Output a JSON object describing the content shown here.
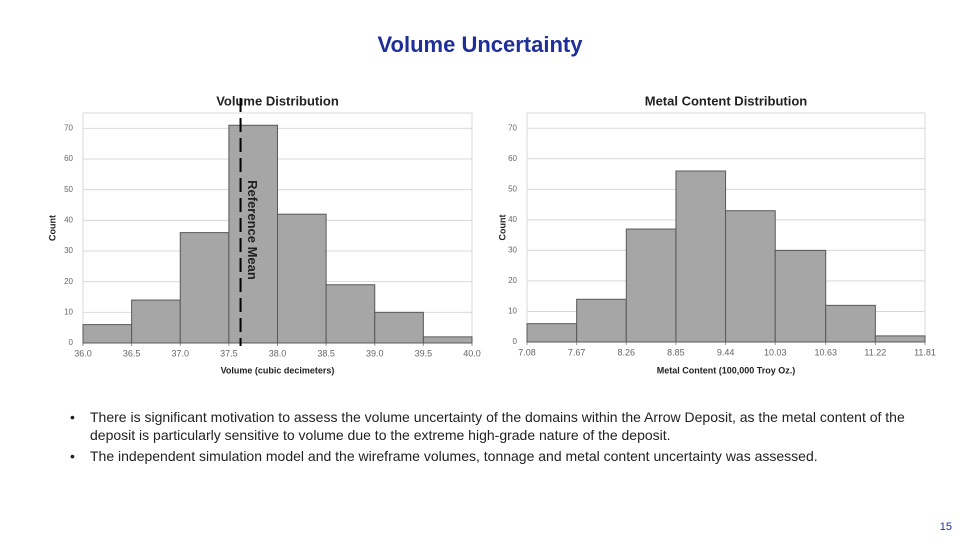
{
  "title": "Volume Uncertainty",
  "bullets": [
    "There is significant motivation to assess the volume uncertainty of the domains within the Arrow Deposit, as the metal content of the deposit is particularly sensitive to volume due to the extreme high-grade nature of the deposit.",
    "The independent simulation model and the wireframe volumes, tonnage and metal content uncertainty was assessed."
  ],
  "page_number": "15",
  "chart_data": [
    {
      "type": "histogram",
      "title": "Volume Distribution",
      "x_label": "Volume (cubic decimeters)",
      "y_label": "Count",
      "bins": [
        36.0,
        36.5,
        37.0,
        37.5,
        38.0,
        38.5,
        39.0,
        39.5,
        40.0
      ],
      "values": [
        6,
        14,
        36,
        71,
        42,
        19,
        10,
        2
      ],
      "color": "#a6a6a6",
      "xlim": [
        36.0,
        40.0
      ],
      "xticks": [
        {
          "value": 36,
          "label": "36.0"
        },
        36.5,
        {
          "value": 37,
          "label": "37.0"
        },
        37.5,
        {
          "value": 38,
          "label": "38.0"
        },
        38.5,
        {
          "value": 39,
          "label": "39.0"
        },
        39.5,
        {
          "value": 40,
          "label": "40.0"
        }
      ],
      "ylim": [
        0,
        75
      ],
      "yticks": [
        0,
        10,
        20,
        30,
        40,
        50,
        60,
        70
      ],
      "grid": true,
      "reference_line": {
        "label": "Reference Mean",
        "value": 37.62
      }
    },
    {
      "type": "histogram",
      "title": "Metal Content Distribution",
      "x_label": "Metal Content (100,000 Troy Oz.)",
      "y_label": "Count",
      "bins": [
        7.08,
        7.67,
        8.26,
        8.85,
        9.44,
        10.03,
        10.63,
        11.22,
        11.81
      ],
      "values": [
        6,
        14,
        37,
        56,
        43,
        30,
        12,
        2
      ],
      "color": "#a6a6a6",
      "xlim": [
        7.08,
        11.81
      ],
      "xticks": [
        7.08,
        7.67,
        8.26,
        8.85,
        9.44,
        10.03,
        10.63,
        11.22,
        11.81
      ],
      "ylim": [
        0,
        75
      ],
      "yticks": [
        0,
        10,
        20,
        30,
        40,
        50,
        60,
        70
      ],
      "grid": true
    }
  ]
}
